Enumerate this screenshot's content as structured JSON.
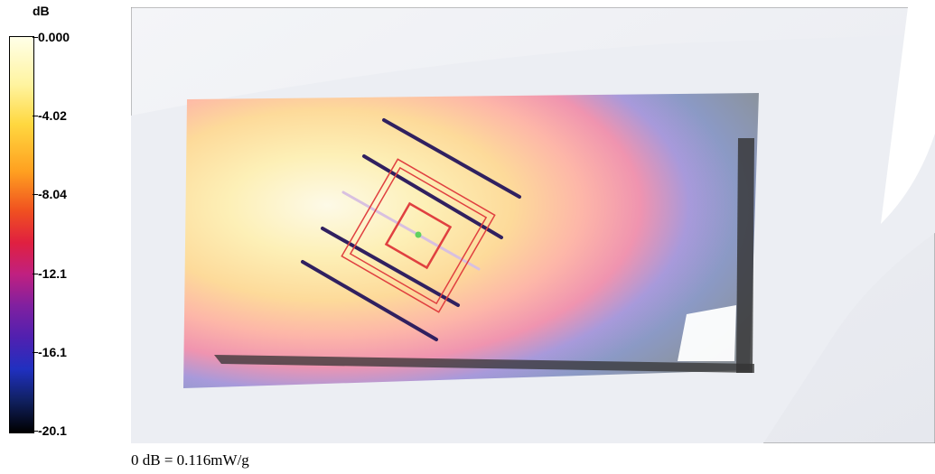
{
  "colorbar": {
    "unit": "dB",
    "ticks": [
      "0.000",
      "-4.02",
      "-8.04",
      "-12.1",
      "-16.1",
      "-20.1"
    ]
  },
  "caption": "0 dB = 0.116mW/g"
}
